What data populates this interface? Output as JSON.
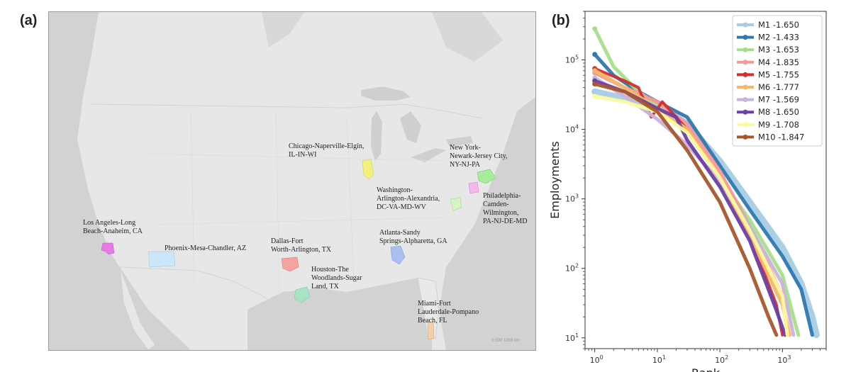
{
  "panel_labels": {
    "a": "(a)",
    "b": "(b)"
  },
  "map": {
    "scale_text": "0      500     1000 km",
    "metros": [
      {
        "id": "los-angeles",
        "label": "Los Angeles-Long\nBeach-Anaheim, CA",
        "color": "#e879e6"
      },
      {
        "id": "phoenix",
        "label": "Phoenix-Mesa-Chandler, AZ",
        "color": "#cbe6f8"
      },
      {
        "id": "dallas",
        "label": "Dallas-Fort\nWorth-Arlington, TX",
        "color": "#f4a3a0"
      },
      {
        "id": "houston",
        "label": "Houston-The\nWoodlands-Sugar\nLand, TX",
        "color": "#a8e4c4"
      },
      {
        "id": "atlanta",
        "label": "Atlanta-Sandy\nSprings-Alpharetta, GA",
        "color": "#aabff2"
      },
      {
        "id": "chicago",
        "label": "Chicago-Naperville-Elgin,\nIL-IN-WI",
        "color": "#f3f07e"
      },
      {
        "id": "new-york",
        "label": "New York-\nNewark-Jersey City,\nNY-NJ-PA",
        "color": "#a6ec9a"
      },
      {
        "id": "washington",
        "label": "Washington-\nArlington-Alexandria,\nDC-VA-MD-WV",
        "color": "#d6f3c6"
      },
      {
        "id": "philadelphia",
        "label": "Philadelphia-\nCamden-\nWilmington,\nPA-NJ-DE-MD",
        "color": "#f4b8ec"
      },
      {
        "id": "miami",
        "label": "Miami-Fort\nLauderdale-Pompano\nBeach, FL",
        "color": "#f6cfa8"
      }
    ]
  },
  "chart_data": {
    "type": "line",
    "xscale": "log",
    "yscale": "log",
    "xlabel": "Rank",
    "ylabel": "Employments",
    "xlim": [
      0.7,
      5000
    ],
    "ylim": [
      7,
      500000
    ],
    "xticks": [
      {
        "value": 1,
        "base": "10",
        "exp": "0"
      },
      {
        "value": 10,
        "base": "10",
        "exp": "1"
      },
      {
        "value": 100,
        "base": "10",
        "exp": "2"
      },
      {
        "value": 1000,
        "base": "10",
        "exp": "3"
      }
    ],
    "yticks": [
      {
        "value": 10,
        "base": "10",
        "exp": "1"
      },
      {
        "value": 100,
        "base": "10",
        "exp": "2"
      },
      {
        "value": 1000,
        "base": "10",
        "exp": "3"
      },
      {
        "value": 10000,
        "base": "10",
        "exp": "4"
      },
      {
        "value": 100000,
        "base": "10",
        "exp": "5"
      }
    ],
    "legend_position": "top-right",
    "series": [
      {
        "name": "M1",
        "slope": "-1.650",
        "color": "#a7cce4",
        "width": 9,
        "points": [
          [
            1,
            35000
          ],
          [
            3,
            28000
          ],
          [
            10,
            22000
          ],
          [
            30,
            12000
          ],
          [
            100,
            3500
          ],
          [
            300,
            900
          ],
          [
            1000,
            200
          ],
          [
            2000,
            60
          ],
          [
            3000,
            20
          ],
          [
            3500,
            11
          ]
        ]
      },
      {
        "name": "M2",
        "slope": "-1.433",
        "color": "#2e78b0",
        "width": 5,
        "points": [
          [
            1,
            120000
          ],
          [
            2,
            60000
          ],
          [
            5,
            35000
          ],
          [
            10,
            25000
          ],
          [
            30,
            15000
          ],
          [
            100,
            3000
          ],
          [
            300,
            700
          ],
          [
            1000,
            150
          ],
          [
            2000,
            50
          ],
          [
            3000,
            11
          ]
        ]
      },
      {
        "name": "M3",
        "slope": "-1.653",
        "color": "#a6df89",
        "width": 5,
        "points": [
          [
            1,
            280000
          ],
          [
            2,
            80000
          ],
          [
            5,
            35000
          ],
          [
            10,
            22000
          ],
          [
            30,
            9000
          ],
          [
            100,
            2000
          ],
          [
            300,
            500
          ],
          [
            1000,
            80
          ],
          [
            1500,
            20
          ],
          [
            1800,
            11
          ]
        ]
      },
      {
        "name": "M4",
        "slope": "-1.835",
        "color": "#f4999a",
        "width": 5,
        "points": [
          [
            1,
            65000
          ],
          [
            3,
            40000
          ],
          [
            10,
            25000
          ],
          [
            30,
            12000
          ],
          [
            100,
            2500
          ],
          [
            300,
            400
          ],
          [
            1000,
            40
          ],
          [
            1200,
            11
          ]
        ]
      },
      {
        "name": "M5",
        "slope": "-1.755",
        "color": "#d52e2e",
        "width": 4,
        "points": [
          [
            1,
            75000
          ],
          [
            3,
            50000
          ],
          [
            5,
            40000
          ],
          [
            8,
            15000
          ],
          [
            12,
            25000
          ],
          [
            30,
            10000
          ],
          [
            100,
            2000
          ],
          [
            300,
            300
          ],
          [
            800,
            30
          ],
          [
            1000,
            11
          ]
        ]
      },
      {
        "name": "M6",
        "slope": "-1.777",
        "color": "#f7b66a",
        "width": 5,
        "points": [
          [
            1,
            70000
          ],
          [
            3,
            40000
          ],
          [
            10,
            20000
          ],
          [
            30,
            10000
          ],
          [
            100,
            2000
          ],
          [
            300,
            300
          ],
          [
            1000,
            30
          ],
          [
            1300,
            11
          ]
        ]
      },
      {
        "name": "M7",
        "slope": "-1.569",
        "color": "#c9b2dc",
        "width": 5,
        "points": [
          [
            1,
            55000
          ],
          [
            3,
            30000
          ],
          [
            10,
            14000
          ],
          [
            30,
            6000
          ],
          [
            100,
            1800
          ],
          [
            300,
            400
          ],
          [
            1000,
            60
          ],
          [
            1500,
            11
          ]
        ]
      },
      {
        "name": "M8",
        "slope": "-1.650",
        "color": "#6b3fa3",
        "width": 5,
        "points": [
          [
            1,
            50000
          ],
          [
            3,
            35000
          ],
          [
            10,
            20000
          ],
          [
            20,
            15000
          ],
          [
            30,
            7000
          ],
          [
            100,
            1500
          ],
          [
            300,
            250
          ],
          [
            800,
            25
          ],
          [
            1100,
            11
          ]
        ]
      },
      {
        "name": "M9",
        "slope": "-1.708",
        "color": "#fafa9e",
        "width": 5,
        "points": [
          [
            1,
            30000
          ],
          [
            3,
            25000
          ],
          [
            10,
            18000
          ],
          [
            30,
            9000
          ],
          [
            100,
            2000
          ],
          [
            300,
            350
          ],
          [
            1000,
            40
          ],
          [
            1200,
            11
          ]
        ]
      },
      {
        "name": "M10",
        "slope": "-1.847",
        "color": "#a8572c",
        "width": 5,
        "points": [
          [
            1,
            45000
          ],
          [
            3,
            35000
          ],
          [
            10,
            18000
          ],
          [
            30,
            5000
          ],
          [
            100,
            900
          ],
          [
            300,
            100
          ],
          [
            600,
            20
          ],
          [
            800,
            11
          ]
        ]
      }
    ]
  }
}
